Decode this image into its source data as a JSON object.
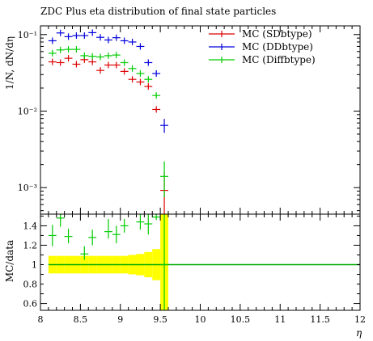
{
  "title": "ZDC Plus eta distribution of final state particles",
  "chart_data": [
    {
      "type": "scatter",
      "panel": "main",
      "ylabel": "1/N, dN/dη",
      "yscale": "log",
      "ylim": [
        0.00045,
        0.13
      ],
      "xlim": [
        8,
        12
      ],
      "yticks": [
        {
          "value": 0.1,
          "label": "10⁻¹"
        },
        {
          "value": 0.01,
          "label": "10⁻²"
        },
        {
          "value": 0.001,
          "label": "10⁻³"
        }
      ],
      "legend_position": "top-right",
      "series": [
        {
          "name": "MC (SDbtype)",
          "color": "#dd0000",
          "points": [
            {
              "x": 8.15,
              "y": 0.044
            },
            {
              "x": 8.25,
              "y": 0.043
            },
            {
              "x": 8.35,
              "y": 0.049
            },
            {
              "x": 8.45,
              "y": 0.041
            },
            {
              "x": 8.55,
              "y": 0.047
            },
            {
              "x": 8.65,
              "y": 0.044
            },
            {
              "x": 8.75,
              "y": 0.034
            },
            {
              "x": 8.85,
              "y": 0.04
            },
            {
              "x": 8.95,
              "y": 0.04
            },
            {
              "x": 9.05,
              "y": 0.033
            },
            {
              "x": 9.15,
              "y": 0.026
            },
            {
              "x": 9.25,
              "y": 0.024
            },
            {
              "x": 9.35,
              "y": 0.021
            },
            {
              "x": 9.45,
              "y": 0.0105
            },
            {
              "x": 9.55,
              "y": 0.00092,
              "err": [
                0.00045,
                0.0016
              ]
            }
          ]
        },
        {
          "name": "MC (DDbtype)",
          "color": "#0000dd",
          "points": [
            {
              "x": 8.15,
              "y": 0.083
            },
            {
              "x": 8.25,
              "y": 0.105
            },
            {
              "x": 8.35,
              "y": 0.094
            },
            {
              "x": 8.45,
              "y": 0.097
            },
            {
              "x": 8.55,
              "y": 0.097
            },
            {
              "x": 8.65,
              "y": 0.106
            },
            {
              "x": 8.75,
              "y": 0.092
            },
            {
              "x": 8.85,
              "y": 0.085
            },
            {
              "x": 8.95,
              "y": 0.091
            },
            {
              "x": 9.05,
              "y": 0.083
            },
            {
              "x": 9.15,
              "y": 0.08
            },
            {
              "x": 9.25,
              "y": 0.07
            },
            {
              "x": 9.35,
              "y": 0.043
            },
            {
              "x": 9.45,
              "y": 0.031
            },
            {
              "x": 9.55,
              "y": 0.0065,
              "err": [
                0.0052,
                0.0079
              ]
            }
          ]
        },
        {
          "name": "MC (Diffbtype)",
          "color": "#00cc00",
          "points": [
            {
              "x": 8.15,
              "y": 0.057
            },
            {
              "x": 8.25,
              "y": 0.063
            },
            {
              "x": 8.35,
              "y": 0.064
            },
            {
              "x": 8.45,
              "y": 0.064
            },
            {
              "x": 8.55,
              "y": 0.053
            },
            {
              "x": 8.65,
              "y": 0.052
            },
            {
              "x": 8.75,
              "y": 0.051
            },
            {
              "x": 8.85,
              "y": 0.053
            },
            {
              "x": 8.95,
              "y": 0.054
            },
            {
              "x": 9.05,
              "y": 0.043
            },
            {
              "x": 9.15,
              "y": 0.036
            },
            {
              "x": 9.25,
              "y": 0.031
            },
            {
              "x": 9.35,
              "y": 0.026
            },
            {
              "x": 9.45,
              "y": 0.016
            },
            {
              "x": 9.55,
              "y": 0.0014,
              "err": [
                0.00075,
                0.0022
              ]
            }
          ]
        }
      ]
    },
    {
      "type": "scatter",
      "panel": "ratio",
      "ylabel": "MC/data",
      "xlabel": "η",
      "ylim": [
        0.53,
        1.52
      ],
      "xlim": [
        8,
        12
      ],
      "yticks": [
        {
          "value": 0.6,
          "label": "0.6"
        },
        {
          "value": 0.8,
          "label": "0.8"
        },
        {
          "value": 1.0,
          "label": "1"
        },
        {
          "value": 1.2,
          "label": "1.2"
        },
        {
          "value": 1.4,
          "label": "1.4"
        }
      ],
      "xticks": [
        {
          "value": 8,
          "label": "8"
        },
        {
          "value": 8.5,
          "label": "8.5"
        },
        {
          "value": 9,
          "label": "9"
        },
        {
          "value": 9.5,
          "label": "9.5"
        },
        {
          "value": 10,
          "label": "10"
        },
        {
          "value": 10.5,
          "label": "10.5"
        },
        {
          "value": 11,
          "label": "11"
        },
        {
          "value": 11.5,
          "label": "11.5"
        },
        {
          "value": 12,
          "label": "12"
        }
      ],
      "reference_line": {
        "y": 1.0,
        "color": "#00aa00"
      },
      "band": {
        "color": "#ffff00",
        "bins": [
          {
            "x0": 8.1,
            "x1": 8.2,
            "lo": 0.91,
            "hi": 1.09
          },
          {
            "x0": 8.2,
            "x1": 8.3,
            "lo": 0.91,
            "hi": 1.09
          },
          {
            "x0": 8.3,
            "x1": 8.4,
            "lo": 0.91,
            "hi": 1.09
          },
          {
            "x0": 8.4,
            "x1": 8.5,
            "lo": 0.91,
            "hi": 1.09
          },
          {
            "x0": 8.5,
            "x1": 8.6,
            "lo": 0.91,
            "hi": 1.09
          },
          {
            "x0": 8.6,
            "x1": 8.7,
            "lo": 0.91,
            "hi": 1.09
          },
          {
            "x0": 8.7,
            "x1": 8.8,
            "lo": 0.91,
            "hi": 1.09
          },
          {
            "x0": 8.8,
            "x1": 8.9,
            "lo": 0.91,
            "hi": 1.09
          },
          {
            "x0": 8.9,
            "x1": 9.0,
            "lo": 0.91,
            "hi": 1.09
          },
          {
            "x0": 9.0,
            "x1": 9.1,
            "lo": 0.91,
            "hi": 1.09
          },
          {
            "x0": 9.1,
            "x1": 9.2,
            "lo": 0.9,
            "hi": 1.1
          },
          {
            "x0": 9.2,
            "x1": 9.3,
            "lo": 0.89,
            "hi": 1.11
          },
          {
            "x0": 9.3,
            "x1": 9.4,
            "lo": 0.87,
            "hi": 1.13
          },
          {
            "x0": 9.4,
            "x1": 9.5,
            "lo": 0.84,
            "hi": 1.16
          },
          {
            "x0": 9.5,
            "x1": 9.6,
            "lo": 0.53,
            "hi": 1.52
          }
        ]
      },
      "series": [
        {
          "name": "MC (Diffbtype)",
          "color": "#00cc00",
          "points": [
            {
              "x": 8.15,
              "y": 1.3,
              "err": [
                1.19,
                1.41
              ]
            },
            {
              "x": 8.25,
              "y": 1.48,
              "err": [
                1.39,
                1.52
              ]
            },
            {
              "x": 8.35,
              "y": 1.29,
              "err": [
                1.22,
                1.37
              ]
            },
            {
              "x": 8.55,
              "y": 1.11,
              "err": [
                1.05,
                1.19
              ]
            },
            {
              "x": 8.65,
              "y": 1.28,
              "err": [
                1.2,
                1.36
              ]
            },
            {
              "x": 8.85,
              "y": 1.34,
              "err": [
                1.27,
                1.47
              ]
            },
            {
              "x": 8.95,
              "y": 1.31,
              "err": [
                1.22,
                1.4
              ]
            },
            {
              "x": 9.05,
              "y": 1.4,
              "err": [
                1.33,
                1.47
              ]
            },
            {
              "x": 9.25,
              "y": 1.44,
              "err": [
                1.36,
                1.52
              ]
            },
            {
              "x": 9.35,
              "y": 1.42,
              "err": [
                1.31,
                1.52
              ]
            },
            {
              "x": 9.45,
              "y": 1.49,
              "err": [
                1.46,
                1.52
              ]
            },
            {
              "x": 9.55,
              "y": 1.0,
              "err": [
                0.53,
                1.52
              ]
            }
          ]
        }
      ]
    }
  ]
}
